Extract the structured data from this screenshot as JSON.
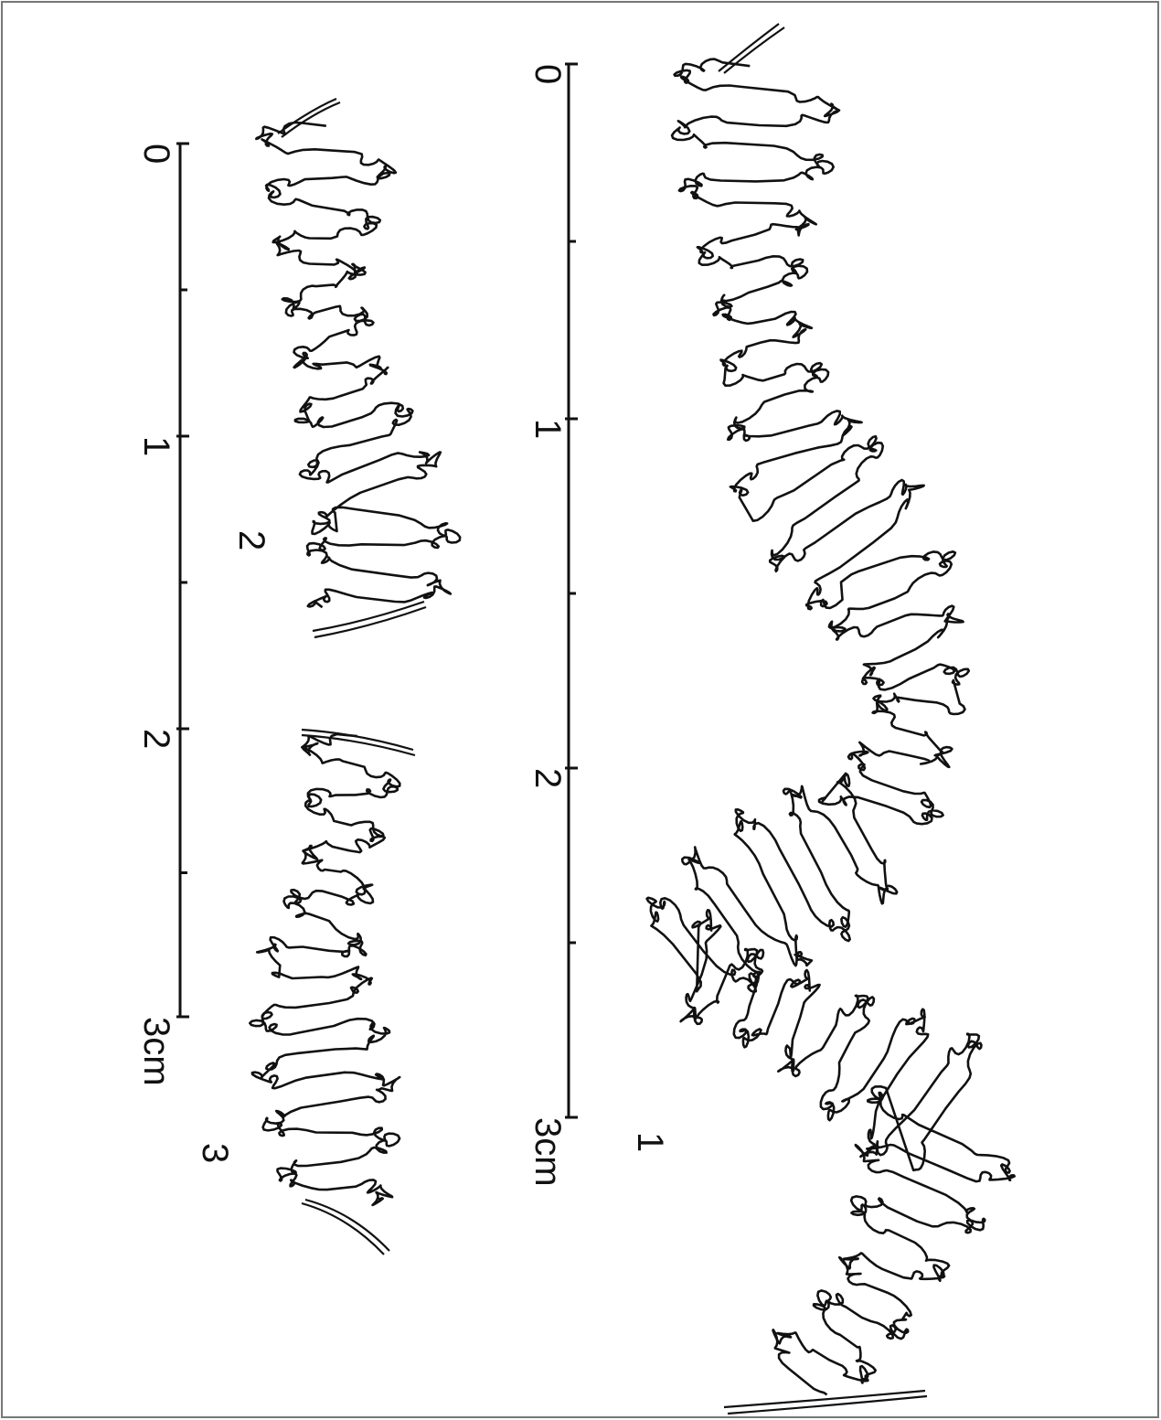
{
  "scales": [
    {
      "ticks": [
        "0",
        "1",
        "2",
        "3cm"
      ]
    },
    {
      "ticks": [
        "0",
        "1",
        "2",
        "3cm"
      ]
    }
  ],
  "figures": [
    "1",
    "2",
    "3"
  ]
}
